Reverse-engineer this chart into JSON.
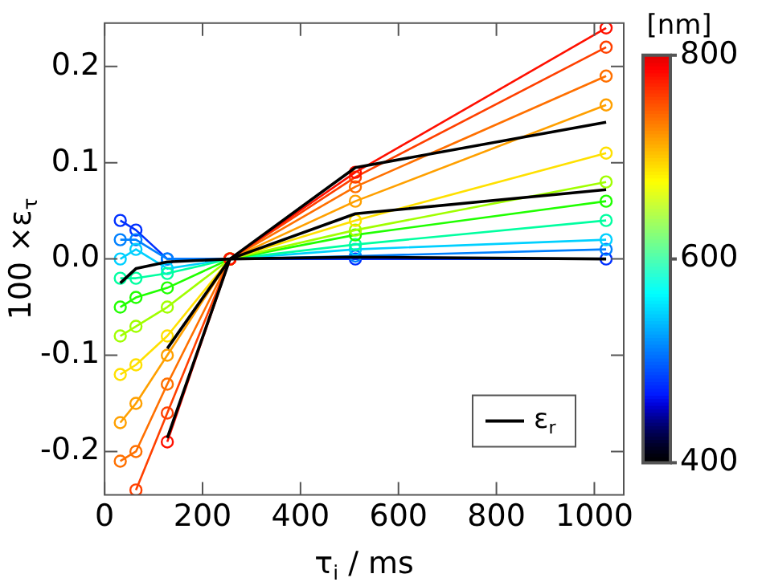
{
  "chart_data": {
    "type": "line",
    "xlabel": "τ$_{i}$ / ms",
    "ylabel": "100 ×ε$_{τ}$",
    "clabel": "[nm]",
    "clim": [
      400,
      800
    ],
    "cticks": [
      400,
      600,
      800
    ],
    "x": [
      32,
      64,
      128,
      256,
      512,
      1024
    ],
    "xlim": [
      0,
      1060
    ],
    "xticks": [
      0,
      200,
      400,
      600,
      800,
      1000
    ],
    "ylim": [
      -0.245,
      0.245
    ],
    "yticks": [
      {
        "value": -0.2,
        "label": "-0.2"
      },
      {
        "value": -0.1,
        "label": "-0.1"
      },
      {
        "value": 0,
        "label": "0.0"
      },
      {
        "value": 0.1,
        "label": "0.1"
      },
      {
        "value": 0.2,
        "label": "0.2"
      }
    ],
    "marker": "circle",
    "grid": false,
    "legend": "bottom right",
    "series": [
      {
        "color": "#0030ff",
        "values": [
          0.04,
          0.03,
          0.0,
          0,
          0.0,
          0.0
        ]
      },
      {
        "color": "#0080ff",
        "values": [
          0.02,
          0.02,
          0.0,
          0,
          0.003,
          0.01
        ]
      },
      {
        "color": "#00d0ff",
        "values": [
          0.0,
          0.01,
          -0.01,
          0,
          0.01,
          0.02
        ]
      },
      {
        "color": "#00ffa0",
        "values": [
          -0.02,
          -0.02,
          -0.015,
          0,
          0.015,
          0.04
        ]
      },
      {
        "color": "#20ff00",
        "values": [
          -0.05,
          -0.04,
          -0.03,
          0,
          0.025,
          0.06
        ]
      },
      {
        "color": "#a0ff00",
        "values": [
          -0.08,
          -0.07,
          -0.05,
          0,
          0.03,
          0.08
        ]
      },
      {
        "color": "#ffe000",
        "values": [
          -0.12,
          -0.11,
          -0.08,
          0,
          0.04,
          0.11
        ]
      },
      {
        "color": "#ffa000",
        "values": [
          -0.17,
          -0.15,
          -0.1,
          0,
          0.06,
          0.16
        ]
      },
      {
        "color": "#ff7000",
        "values": [
          -0.21,
          -0.2,
          -0.13,
          0,
          0.075,
          0.19
        ]
      },
      {
        "color": "#ff4000",
        "values": [
          null,
          -0.24,
          -0.16,
          0,
          0.085,
          0.22
        ]
      },
      {
        "color": "#ff1000",
        "values": [
          null,
          null,
          -0.19,
          0,
          0.09,
          0.24
        ]
      },
      {
        "name": "ε$_{r}$",
        "color": "#000000",
        "marker": "none",
        "values": [
          -0.025,
          -0.01,
          -0.003,
          0,
          0.002,
          0.0
        ]
      },
      {
        "color": "#000000",
        "marker": "none",
        "values": [
          null,
          null,
          -0.093,
          0,
          0.047,
          0.072
        ]
      },
      {
        "color": "#000000",
        "marker": "none",
        "values": [
          null,
          null,
          -0.186,
          0,
          0.095,
          0.142
        ]
      }
    ]
  }
}
